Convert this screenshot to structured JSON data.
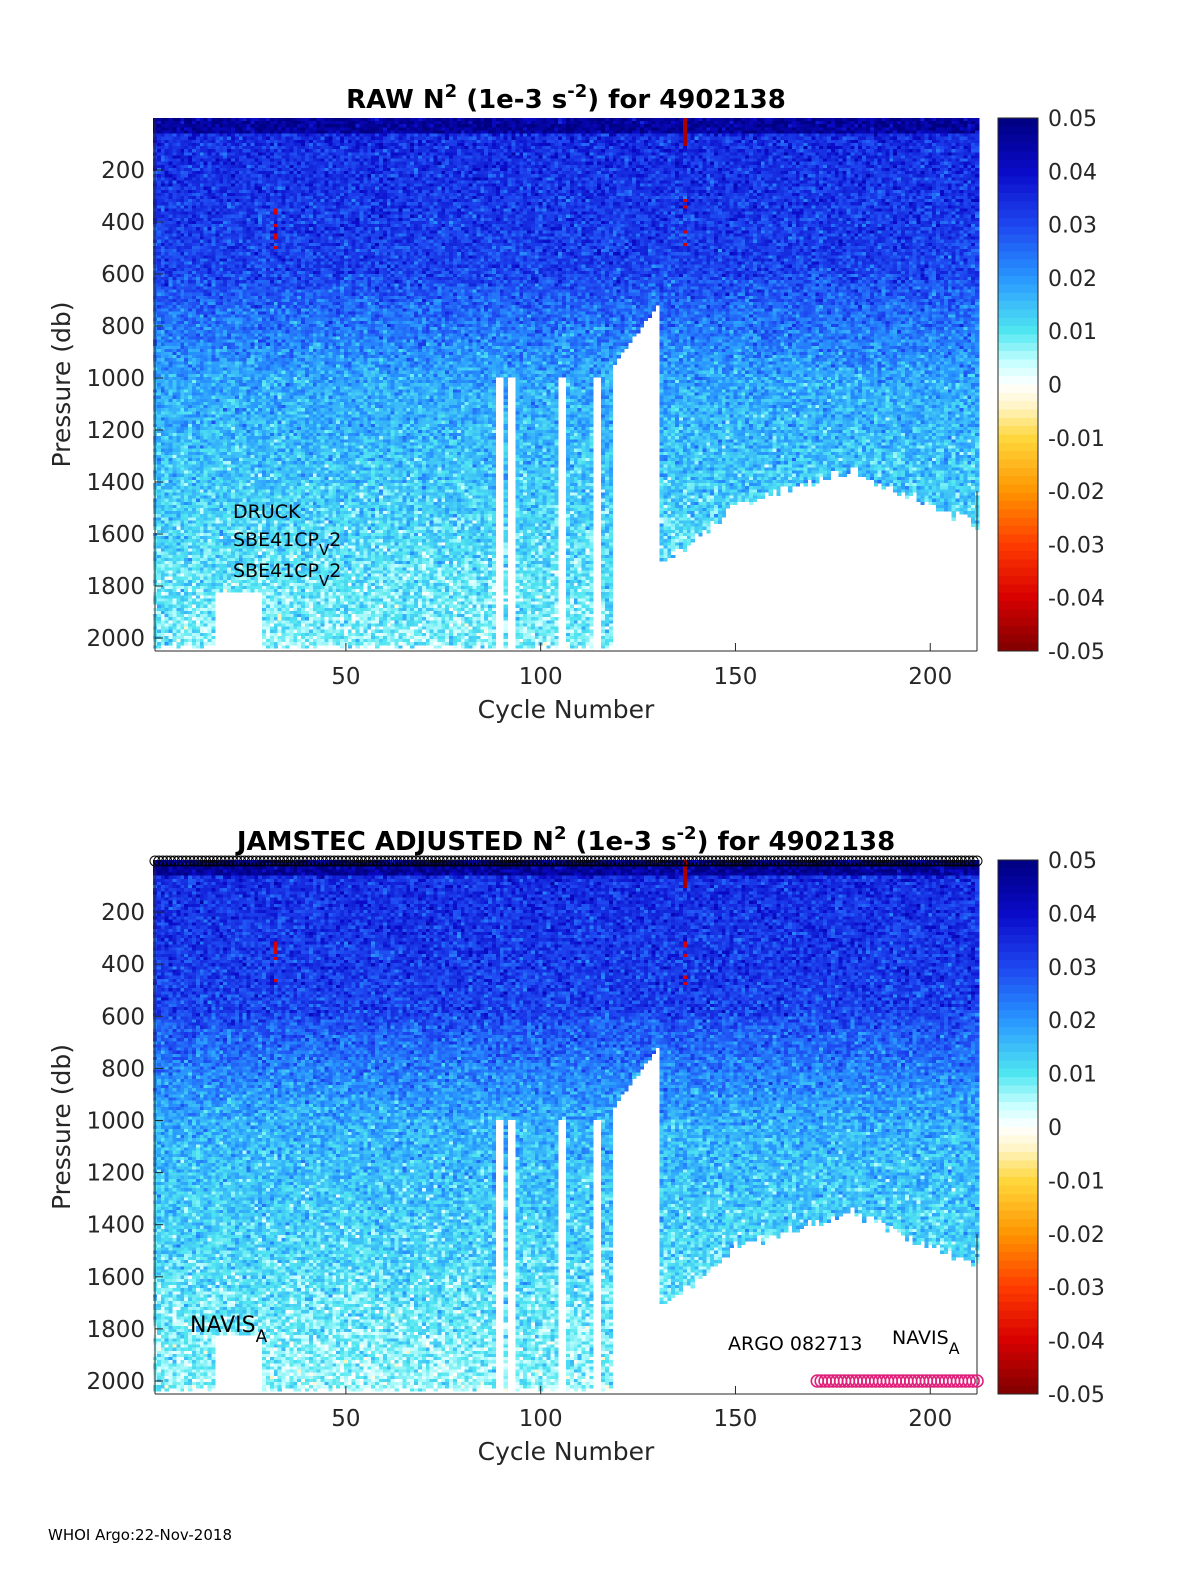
{
  "footer": "WHOI Argo:22-Nov-2018",
  "chart_data": [
    {
      "type": "heatmap",
      "title": {
        "prefix": "RAW N",
        "sup": "2",
        "mid": " (1e-3 s",
        "sup2": "-2",
        "suffix": ") for 4902138"
      },
      "xlabel": "Cycle Number",
      "ylabel": "Pressure (db)",
      "xlim": [
        1,
        212
      ],
      "ylim": [
        2050,
        0
      ],
      "xticks": [
        "50",
        "100",
        "150",
        "200"
      ],
      "yticks": [
        "200",
        "400",
        "600",
        "800",
        "1000",
        "1200",
        "1400",
        "1600",
        "1800",
        "2000"
      ],
      "colorbar": {
        "range": [
          -0.05,
          0.05
        ],
        "colormap": "jet-with-white-center",
        "ticks": [
          "0.05",
          "0.04",
          "0.03",
          "0.02",
          "0.01",
          "0",
          "-0.01",
          "-0.02",
          "-0.03",
          "-0.04",
          "-0.05"
        ]
      },
      "annotations": [
        {
          "text": "DRUCK"
        },
        {
          "text": "SBE41CP",
          "sub": "V",
          "after": "2"
        },
        {
          "text": "SBE41CP",
          "sub": "V",
          "after": "2"
        }
      ]
    },
    {
      "type": "heatmap",
      "title": {
        "prefix": "JAMSTEC  ADJUSTED N",
        "sup": "2",
        "mid": " (1e-3 s",
        "sup2": "-2",
        "suffix": ") for 4902138"
      },
      "xlabel": "Cycle Number",
      "ylabel": "Pressure (db)",
      "xlim": [
        1,
        212
      ],
      "ylim": [
        2050,
        0
      ],
      "xticks": [
        "50",
        "100",
        "150",
        "200"
      ],
      "yticks": [
        "200",
        "400",
        "600",
        "800",
        "1000",
        "1200",
        "1400",
        "1600",
        "1800",
        "2000"
      ],
      "colorbar": {
        "range": [
          -0.05,
          0.05
        ],
        "colormap": "jet-with-white-center",
        "ticks": [
          "0.05",
          "0.04",
          "0.03",
          "0.02",
          "0.01",
          "0",
          "-0.01",
          "-0.02",
          "-0.03",
          "-0.04",
          "-0.05"
        ]
      },
      "annotations": [
        {
          "text": "NAVIS",
          "sub": "A"
        },
        {
          "text": "ARGO 082713"
        },
        {
          "text": "NAVIS",
          "sub": "A"
        }
      ],
      "top_markers": {
        "cycle_range": [
          1,
          212
        ],
        "color": "#000000"
      },
      "bottom_markers": {
        "cycle_range": [
          171,
          212
        ],
        "color": "#e0207a"
      }
    }
  ]
}
